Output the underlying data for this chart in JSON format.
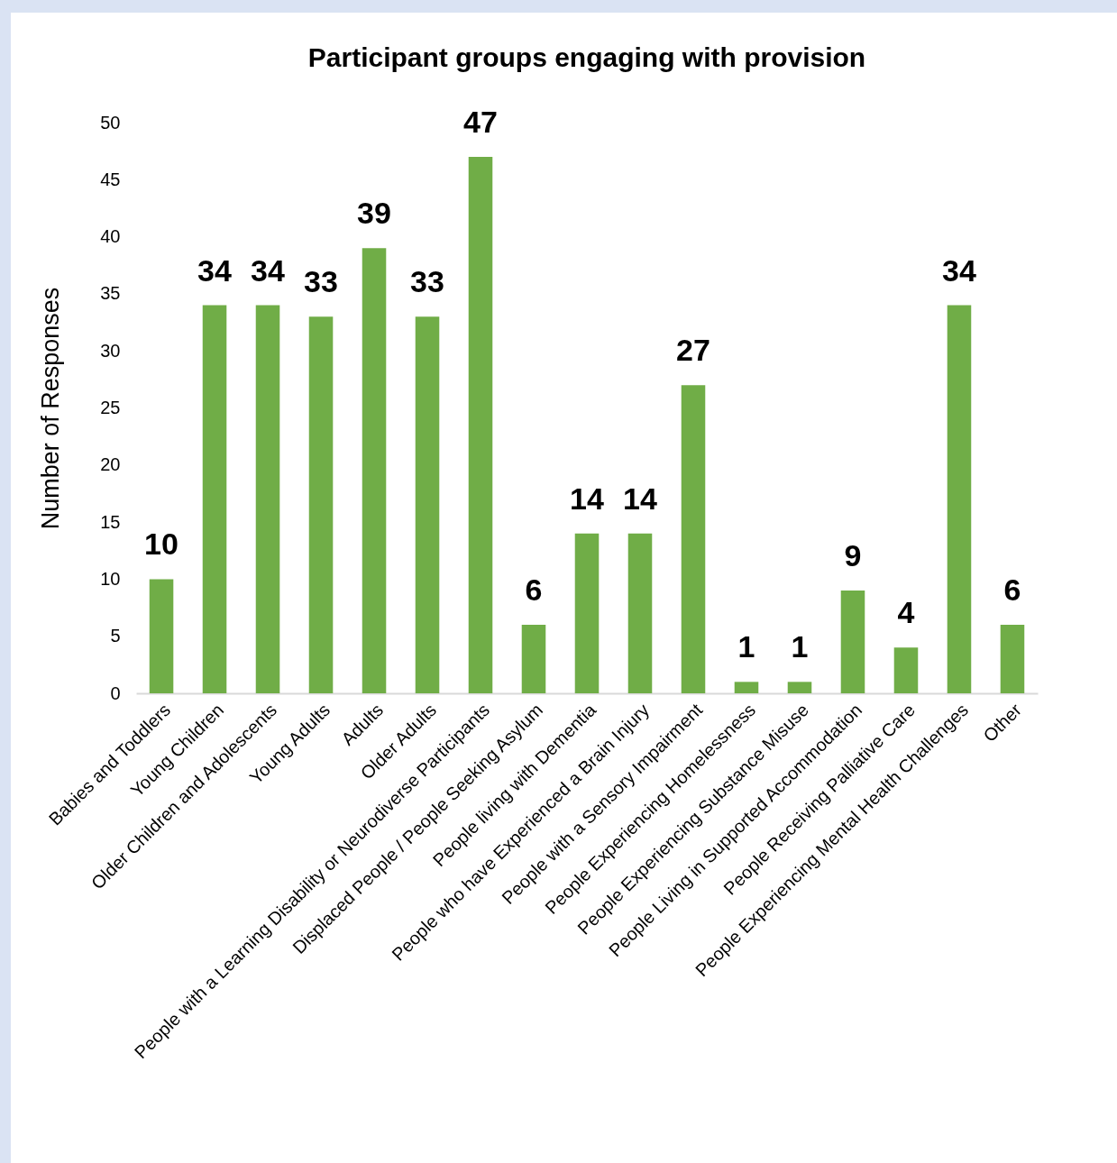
{
  "chart_data": {
    "type": "bar",
    "title": "Participant groups engaging with provision",
    "ylabel": "Number of Responses",
    "categories": [
      "Babies and Toddlers",
      "Young Children",
      "Older Children and Adolescents",
      "Young Adults",
      "Adults",
      "Older Adults",
      "People with a Learning Disability or Neurodiverse Participants",
      "Displaced People / People Seeking Asylum",
      "People living with Dementia",
      "People who have Experienced a Brain Injury",
      "People with a Sensory Impairment",
      "People Experiencing Homelessness",
      "People Experiencing Substance Misuse",
      "People Living in Supported Accommodation",
      "People Receiving Palliative Care",
      "People Experiencing Mental Health Challenges",
      "Other"
    ],
    "values": [
      10,
      34,
      34,
      33,
      39,
      33,
      47,
      6,
      14,
      14,
      27,
      1,
      1,
      9,
      4,
      34,
      6
    ],
    "color": "#70ad47",
    "ylim": [
      0,
      50
    ],
    "yticks": [
      0,
      5,
      10,
      15,
      20,
      25,
      30,
      35,
      40,
      45,
      50
    ],
    "grid": false,
    "data_labels": true
  }
}
